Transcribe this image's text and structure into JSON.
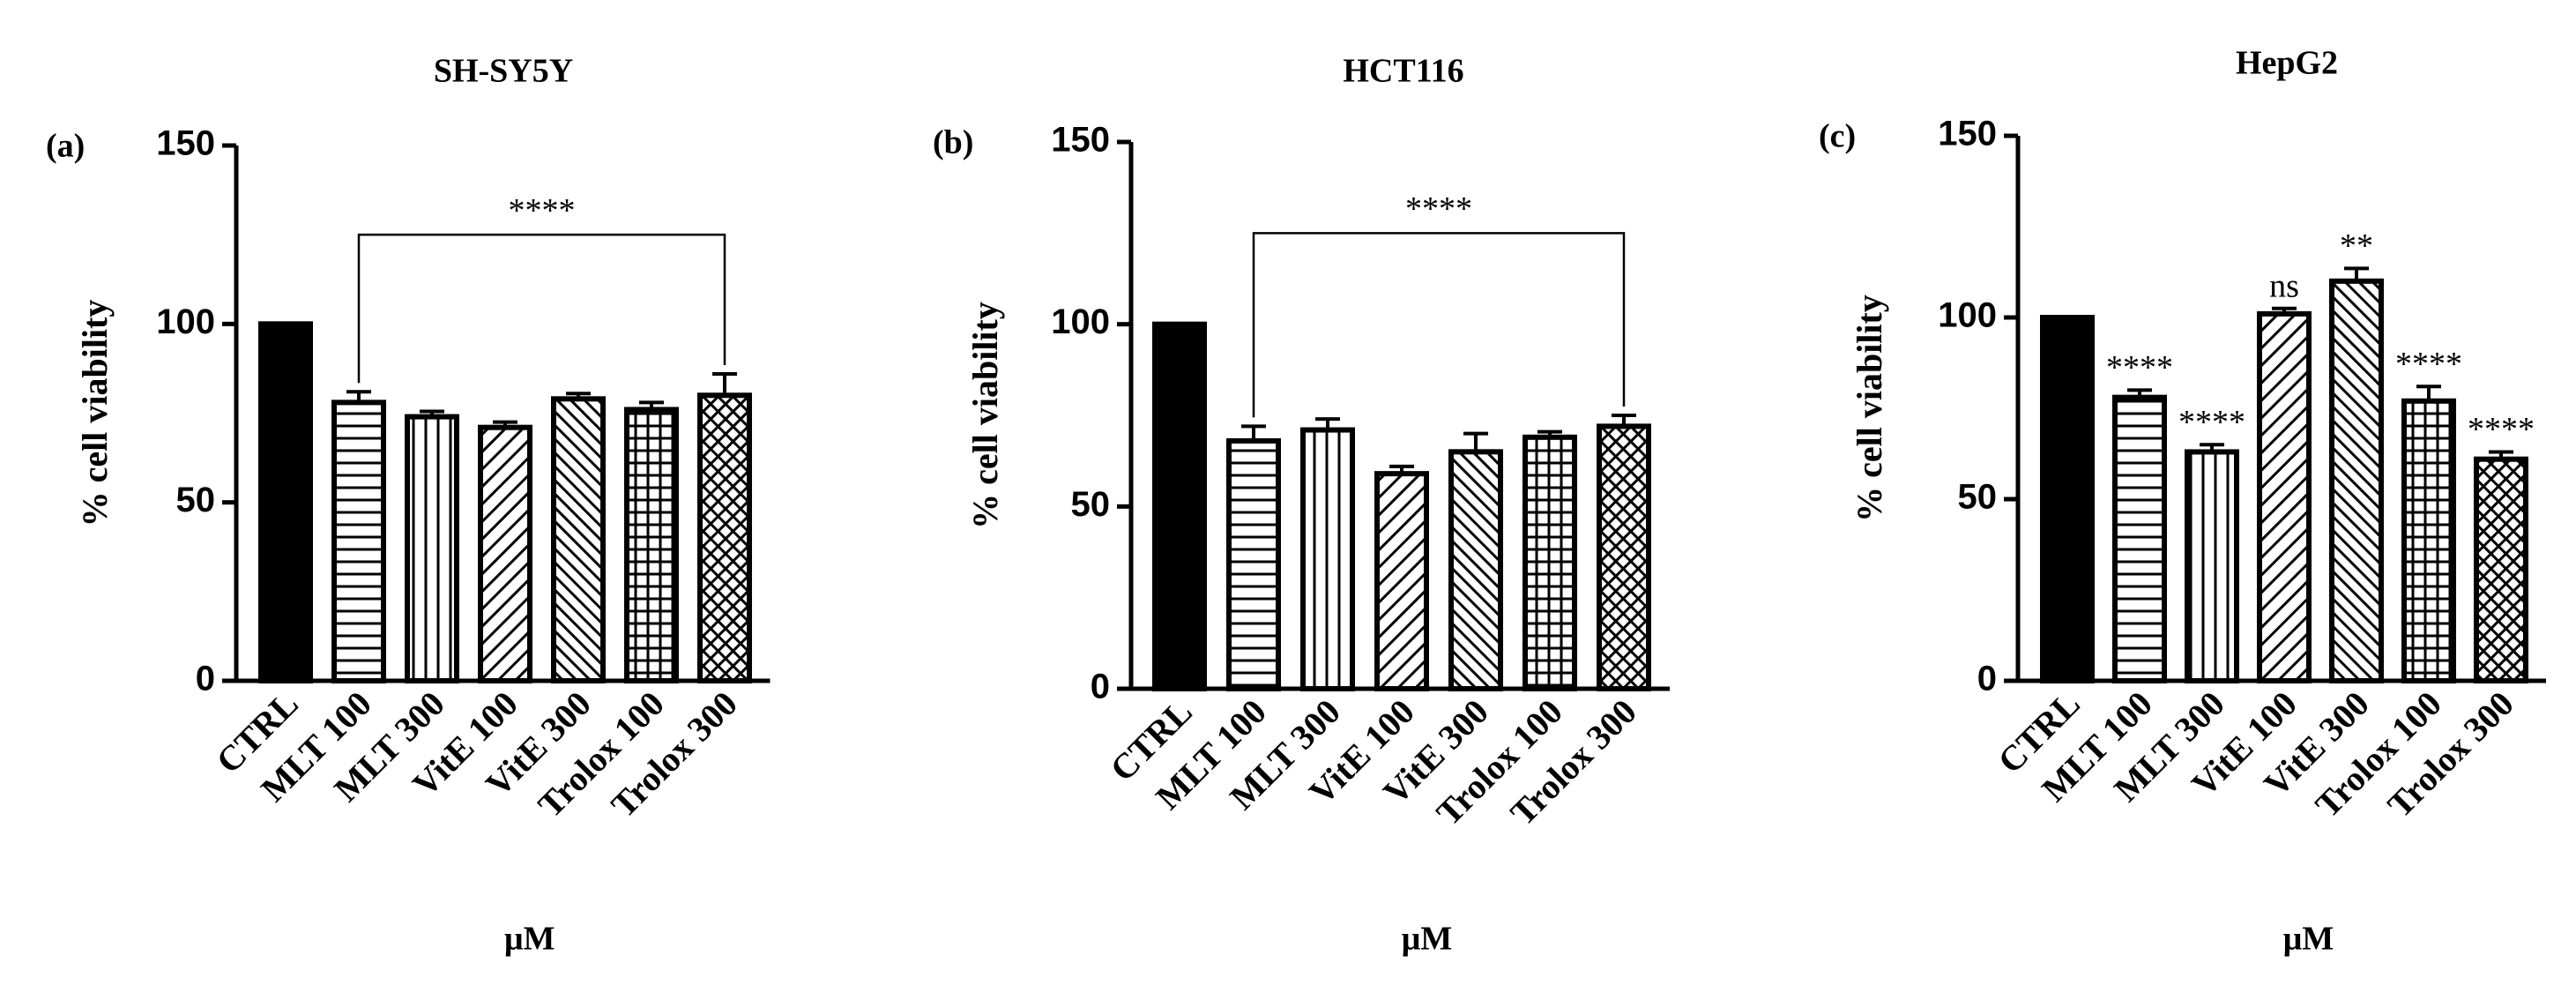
{
  "chart_data": [
    {
      "type": "bar",
      "panel_label": "(a)",
      "title": "SH-SY5Y",
      "y_label": "% cell viability",
      "x_label": "μM",
      "categories": [
        "CTRL",
        "MLT 100",
        "MLT 300",
        "VitE 100",
        "VitE 300",
        "Trolox 100",
        "Trolox 300"
      ],
      "values": [
        100,
        78,
        74,
        71,
        79,
        76,
        80
      ],
      "errors": [
        0,
        3,
        1.5,
        1.5,
        1.5,
        2,
        6
      ],
      "color": "#000000",
      "ylim": [
        0,
        150
      ],
      "yticks": [
        0,
        50,
        100,
        150
      ],
      "significance": "****"
    },
    {
      "type": "bar",
      "panel_label": "(b)",
      "title": "HCT116",
      "y_label": "% cell viability",
      "x_label": "μM",
      "categories": [
        "CTRL",
        "MLT 100",
        "MLT 300",
        "VitE 100",
        "VitE 300",
        "Trolox 100",
        "Trolox 300"
      ],
      "values": [
        100,
        68,
        71,
        59,
        65,
        69,
        72
      ],
      "errors": [
        0,
        4,
        3,
        2,
        5,
        1.5,
        3
      ],
      "color": "#000000",
      "ylim": [
        0,
        150
      ],
      "yticks": [
        0,
        50,
        100,
        150
      ],
      "significance": "****"
    },
    {
      "type": "bar",
      "panel_label": "(c)",
      "title": "HepG2",
      "y_label": "% cell viability",
      "x_label": "μM",
      "categories": [
        "CTRL",
        "MLT 100",
        "MLT 300",
        "VitE 100",
        "VitE 300",
        "Trolox 100",
        "Trolox 300"
      ],
      "values": [
        100,
        78,
        63,
        101,
        110,
        77,
        61
      ],
      "errors": [
        0,
        2,
        2,
        1.5,
        3.5,
        4,
        2
      ],
      "color": "#000000",
      "ylim": [
        0,
        150
      ],
      "yticks": [
        0,
        50,
        100,
        150
      ],
      "significance_labels": [
        null,
        "****",
        "****",
        "ns",
        "**",
        "****",
        "****"
      ]
    }
  ]
}
